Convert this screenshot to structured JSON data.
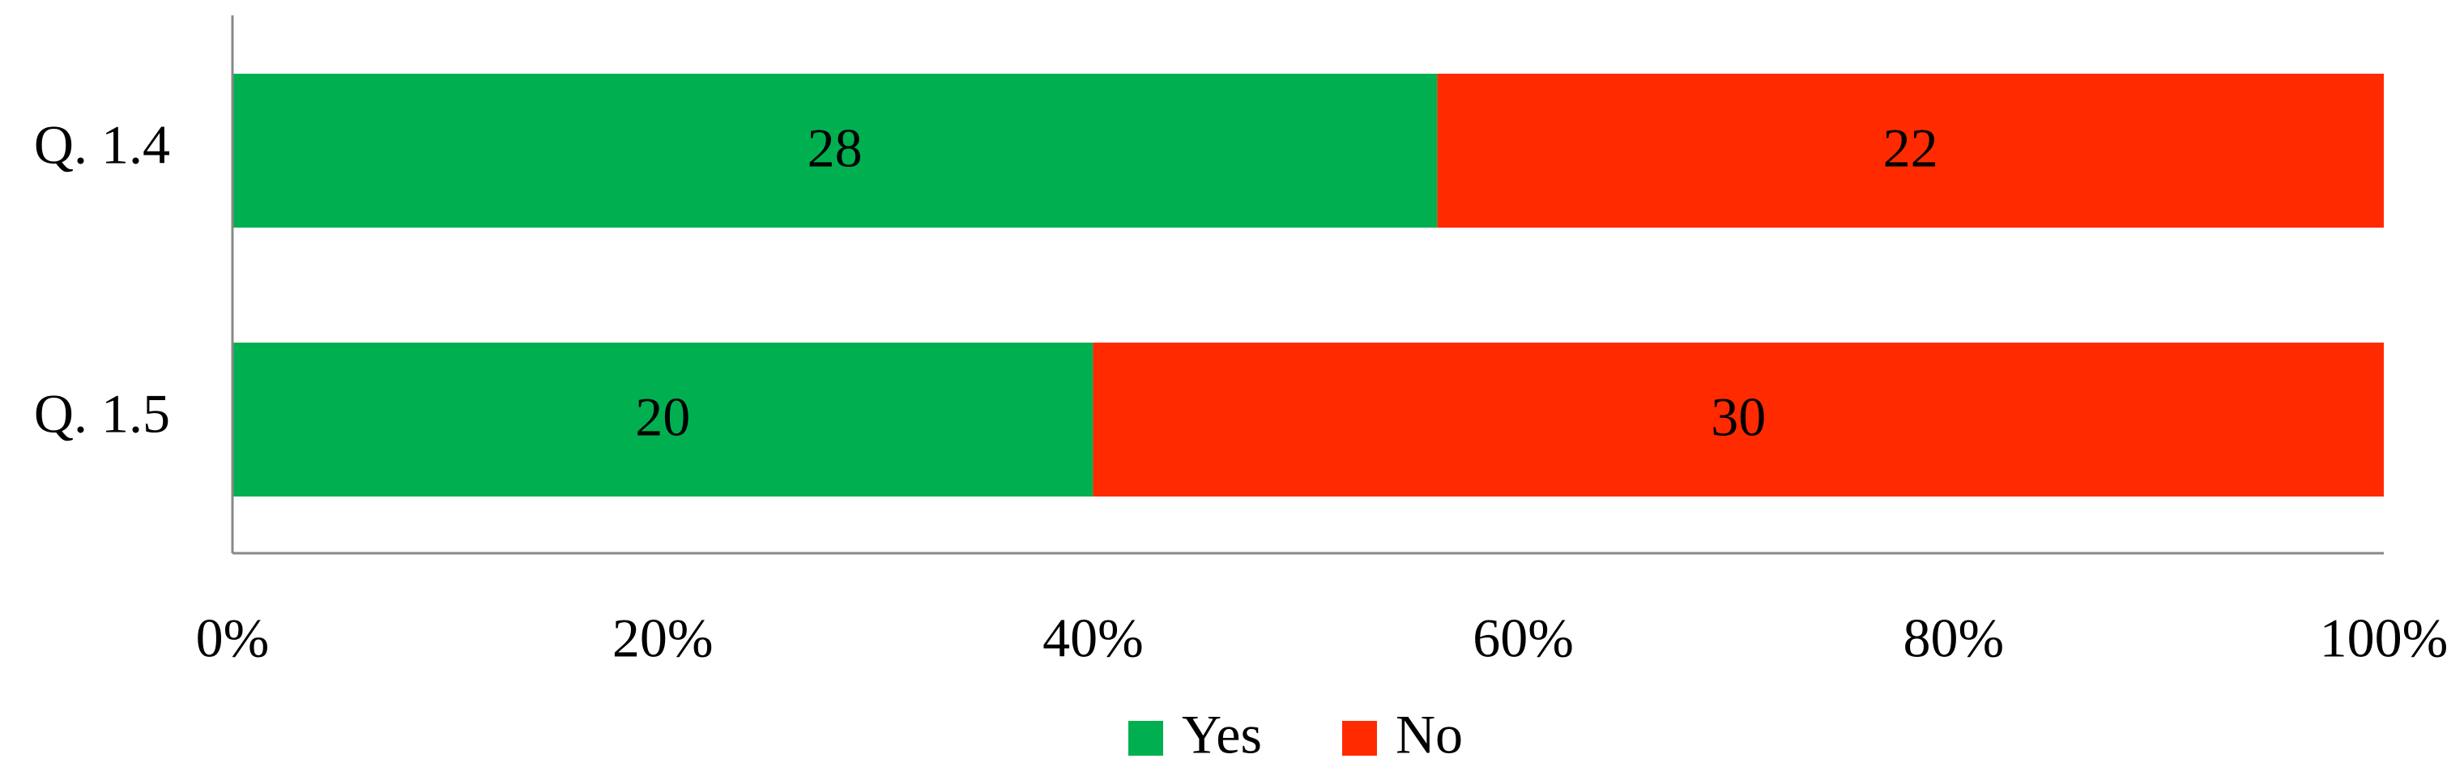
{
  "chart_data": {
    "type": "bar",
    "orientation": "horizontal",
    "stacking": "percent",
    "categories": [
      "Q. 1.4",
      "Q. 1.5"
    ],
    "series": [
      {
        "name": "Yes",
        "color": "#00b050",
        "values": [
          28,
          20
        ]
      },
      {
        "name": "No",
        "color": "#ff2a00",
        "values": [
          22,
          30
        ]
      }
    ],
    "xlim": [
      0,
      100
    ],
    "xticks": [
      {
        "value": 0,
        "label": "0%"
      },
      {
        "value": 20,
        "label": "20%"
      },
      {
        "value": 40,
        "label": "40%"
      },
      {
        "value": 60,
        "label": "60%"
      },
      {
        "value": 80,
        "label": "80%"
      },
      {
        "value": 100,
        "label": "100%"
      }
    ],
    "legend": "bottom"
  }
}
